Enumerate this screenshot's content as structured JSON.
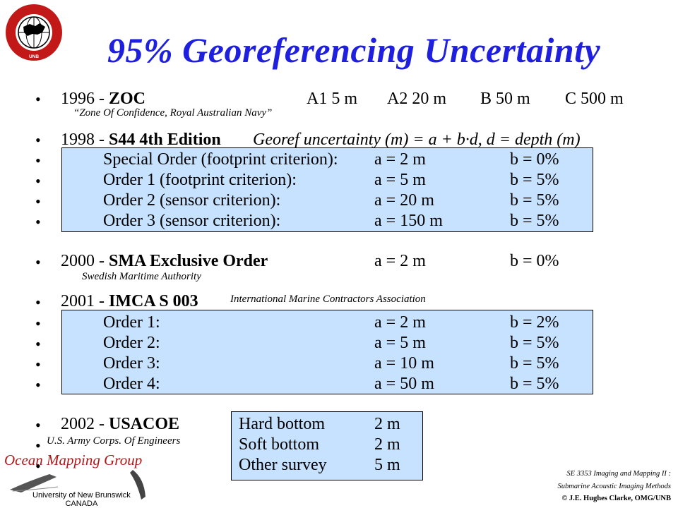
{
  "title": "95% Georeferencing Uncertainty",
  "logo": {
    "ring_text_top": "GEODESY AND GEOMATICS ENGINEERING",
    "ring_text_bottom": "UNB"
  },
  "zoc": {
    "year": "1996 - ",
    "name": "ZOC",
    "a1": "A1  5 m",
    "a2": "A2  20 m",
    "b": "B  50 m",
    "c": "C  500 m",
    "note": "“Zone Of Confidence, Royal Australian Navy”"
  },
  "s44": {
    "year": "1998 - ",
    "name": "S44 4th Edition",
    "formula": "Georef uncertainty (m)  =  a + b·d,  d = depth (m)",
    "rows": [
      {
        "label": "Special Order (footprint criterion):",
        "a": "a = 2 m",
        "b": "b = 0%"
      },
      {
        "label": "Order 1 (footprint criterion):",
        "a": "a = 5 m",
        "b": "b = 5%"
      },
      {
        "label": "Order 2 (sensor criterion):",
        "a": "a = 20 m",
        "b": "b = 5%"
      },
      {
        "label": "Order 3 (sensor criterion):",
        "a": "a = 150 m",
        "b": "b = 5%"
      }
    ]
  },
  "sma": {
    "year": "2000 - ",
    "name": "SMA Exclusive Order",
    "a": "a = 2 m",
    "b": "b = 0%",
    "note": "Swedish Maritime Authority"
  },
  "imca": {
    "year": "2001 - ",
    "name": "IMCA S 003",
    "note": "International Marine Contractors Association",
    "rows": [
      {
        "label": "Order 1:",
        "a": "a = 2 m",
        "b": "b = 2%"
      },
      {
        "label": "Order 2:",
        "a": "a = 5 m",
        "b": "b = 5%"
      },
      {
        "label": "Order 3:",
        "a": "a = 10 m",
        "b": "b = 5%"
      },
      {
        "label": "Order 4:",
        "a": "a = 50 m",
        "b": "b = 5%"
      }
    ]
  },
  "usacoe": {
    "year": "2002 - ",
    "name": "USACOE",
    "note": "U.S. Army Corps. Of Engineers",
    "rows": [
      {
        "label": "Hard bottom",
        "value": "2  m"
      },
      {
        "label": "Soft bottom",
        "value": "2  m"
      },
      {
        "label": "Other survey",
        "value": "5  m"
      }
    ]
  },
  "branding": {
    "group": "Ocean Mapping Group",
    "univ_line1": "University of New Brunswick",
    "univ_line2": "CANADA"
  },
  "footer": {
    "line1": "SE 3353 Imaging and Mapping II :",
    "line2": "Submarine Acoustic Imaging Methods",
    "line3": "© J.E. Hughes Clarke, OMG/UNB"
  },
  "bullet_char": "•"
}
